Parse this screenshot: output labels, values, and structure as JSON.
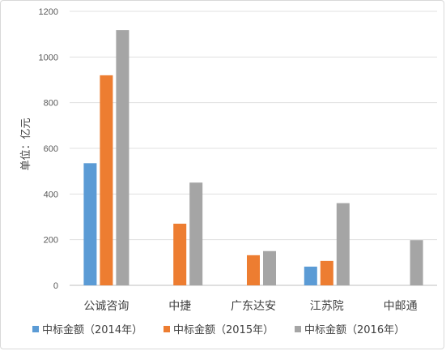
{
  "chart_data": {
    "type": "bar",
    "title": "",
    "xlabel": "",
    "ylabel": "单位：亿元",
    "ylim": [
      0,
      1200
    ],
    "yticks": [
      0,
      200,
      400,
      600,
      800,
      1000,
      1200
    ],
    "grid": true,
    "legend_position": "bottom",
    "categories": [
      "公诚咨询",
      "中捷",
      "广东达安",
      "江苏院",
      "中邮通"
    ],
    "series": [
      {
        "name": "中标金额（2014年）",
        "color": "#5b9bd5",
        "values": [
          535,
          0,
          0,
          82,
          0
        ]
      },
      {
        "name": "中标金额（2015年）",
        "color": "#ed7d31",
        "values": [
          920,
          270,
          132,
          107,
          0
        ]
      },
      {
        "name": "中标金额（2016年）",
        "color": "#a5a5a5",
        "values": [
          1118,
          450,
          150,
          360,
          198
        ]
      }
    ]
  }
}
